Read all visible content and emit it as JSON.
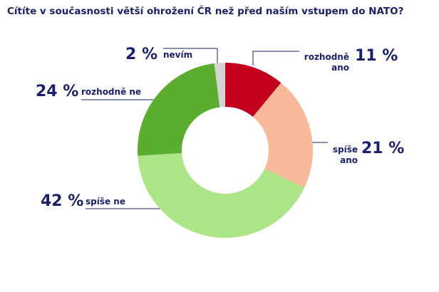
{
  "chart_data": {
    "type": "donut",
    "title": "Cítíte v současnosti větší ohrožení ČR než před naším vstupem do NATO?",
    "categories": [
      "rozhodně ano",
      "spíše ano",
      "spíše ne",
      "rozhodně ne",
      "nevím"
    ],
    "values": [
      11,
      21,
      42,
      24,
      2
    ],
    "value_labels": [
      "11 %",
      "21 %",
      "42 %",
      "24 %",
      "2 %"
    ],
    "colors": [
      "#c4001f",
      "#f8b99b",
      "#abe585",
      "#5aad2e",
      "#d4d4d4"
    ]
  }
}
